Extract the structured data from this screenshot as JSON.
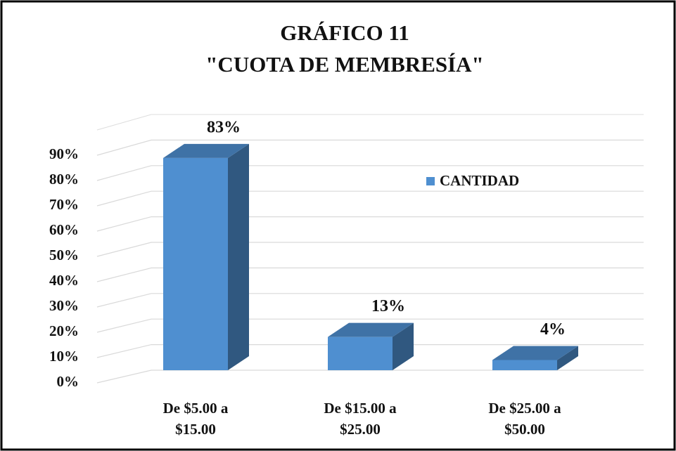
{
  "chart_data": {
    "type": "bar3d",
    "title": "GRÁFICO 11",
    "subtitle": "\"CUOTA DE MEMBRESÍA\"",
    "categories": [
      "De $5.00  a $15.00",
      "De $15.00  a $25.00",
      "De $25.00  a $50.00"
    ],
    "series": [
      {
        "name": "CANTIDAD",
        "color": "#4f8fd0",
        "values": [
          83,
          13,
          4
        ],
        "value_labels": [
          "83%",
          "13%",
          "4%"
        ]
      }
    ],
    "ylim": [
      0,
      100
    ],
    "yticks": [
      {
        "value": 0,
        "label": "0%"
      },
      {
        "value": 10,
        "label": "10%"
      },
      {
        "value": 20,
        "label": "20%"
      },
      {
        "value": 30,
        "label": "30%"
      },
      {
        "value": 40,
        "label": "40%"
      },
      {
        "value": 50,
        "label": "50%"
      },
      {
        "value": 60,
        "label": "60%"
      },
      {
        "value": 70,
        "label": "70%"
      },
      {
        "value": 80,
        "label": "80%"
      },
      {
        "value": 90,
        "label": "90%"
      }
    ],
    "grid": true,
    "legend": "right"
  }
}
